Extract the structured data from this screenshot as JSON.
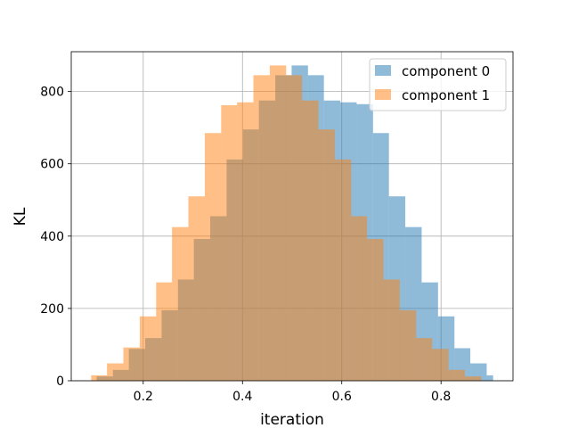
{
  "chart_data": {
    "type": "bar",
    "xlabel": "iteration",
    "ylabel": "KL",
    "xlim": [
      0.055,
      0.945
    ],
    "ylim": [
      0,
      910
    ],
    "xticks": [
      0.2,
      0.4,
      0.6,
      0.8
    ],
    "xtick_labels": [
      "0.2",
      "0.4",
      "0.6",
      "0.8"
    ],
    "yticks": [
      0,
      200,
      400,
      600,
      800
    ],
    "ytick_labels": [
      "0",
      "200",
      "400",
      "600",
      "800"
    ],
    "grid": true,
    "legend_position": "top-right",
    "overlap_color": "#c89e71",
    "series": [
      {
        "name": "component 0",
        "color": "#1f77b4",
        "alpha": 0.5,
        "bin_edges": [
          0.106,
          0.139,
          0.171,
          0.204,
          0.237,
          0.27,
          0.302,
          0.335,
          0.368,
          0.401,
          0.433,
          0.466,
          0.499,
          0.532,
          0.564,
          0.597,
          0.63,
          0.663,
          0.695,
          0.728,
          0.761,
          0.794,
          0.827,
          0.859,
          0.892,
          0.905
        ],
        "counts": [
          12,
          30,
          88,
          118,
          195,
          280,
          392,
          455,
          612,
          695,
          775,
          845,
          872,
          845,
          775,
          770,
          765,
          685,
          510,
          425,
          272,
          178,
          90,
          48,
          15
        ]
      },
      {
        "name": "component 1",
        "color": "#ff7f0e",
        "alpha": 0.5,
        "bin_edges": [
          0.095,
          0.127,
          0.16,
          0.193,
          0.226,
          0.258,
          0.291,
          0.324,
          0.357,
          0.389,
          0.422,
          0.455,
          0.488,
          0.52,
          0.553,
          0.586,
          0.619,
          0.651,
          0.684,
          0.717,
          0.75,
          0.782,
          0.815,
          0.848,
          0.881
        ],
        "counts": [
          15,
          48,
          92,
          178,
          272,
          425,
          510,
          685,
          762,
          770,
          845,
          872,
          845,
          775,
          695,
          612,
          455,
          392,
          280,
          195,
          118,
          88,
          30,
          12
        ]
      }
    ]
  }
}
